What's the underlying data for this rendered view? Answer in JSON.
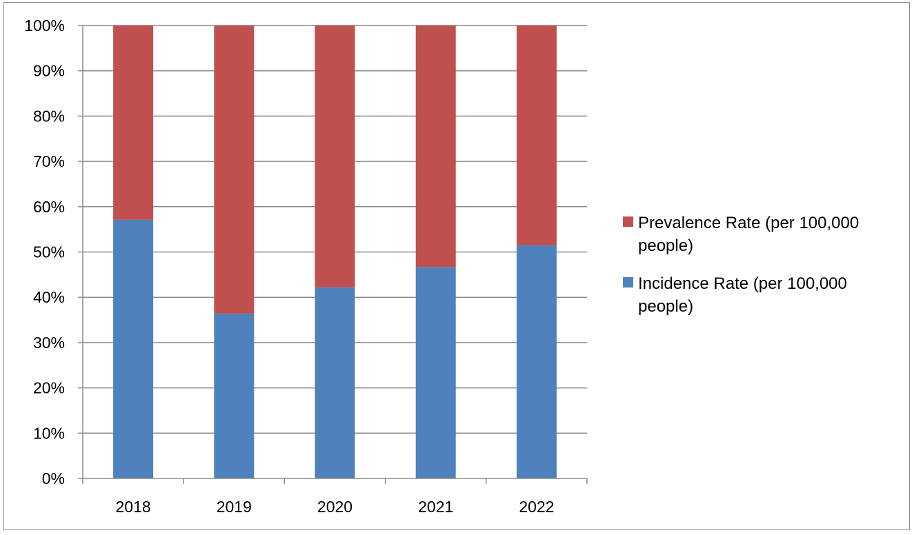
{
  "chart_data": {
    "type": "bar",
    "stacked": true,
    "normalized": true,
    "categories": [
      "2018",
      "2019",
      "2020",
      "2021",
      "2022"
    ],
    "series": [
      {
        "name": "Incidence Rate (per 100,000 people)",
        "color": "#4f81bd",
        "values": [
          57.1,
          36.4,
          42.2,
          46.7,
          51.5
        ]
      },
      {
        "name": "Prevalence Rate (per 100,000 people)",
        "color": "#c0504d",
        "values": [
          42.9,
          63.6,
          57.8,
          53.3,
          48.5
        ]
      }
    ],
    "ylim": [
      0,
      100
    ],
    "yticks": [
      "0%",
      "10%",
      "20%",
      "30%",
      "40%",
      "50%",
      "60%",
      "70%",
      "80%",
      "90%",
      "100%"
    ],
    "grid": true,
    "legend": {
      "position": "right",
      "entries": [
        {
          "lines": [
            "Prevalence Rate (per 100,000",
            "people)"
          ],
          "color": "#c0504d"
        },
        {
          "lines": [
            "Incidence Rate (per 100,000",
            "people)"
          ],
          "color": "#4f81bd"
        }
      ]
    }
  }
}
